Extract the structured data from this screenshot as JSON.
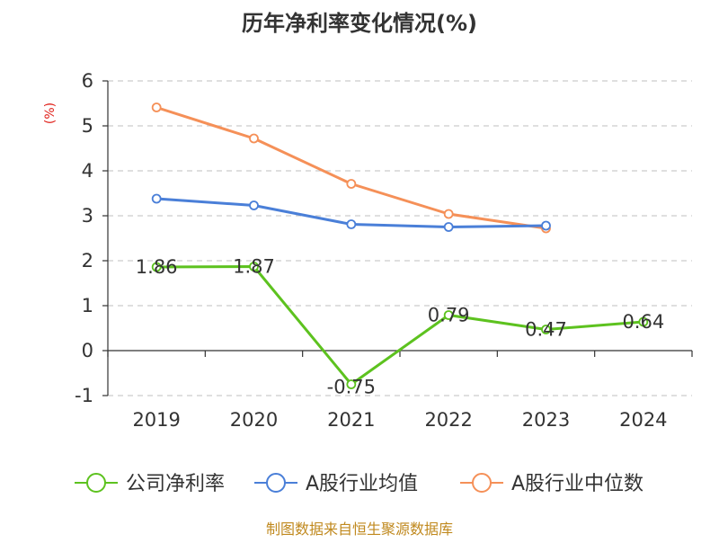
{
  "chart_data": {
    "type": "line",
    "title": "历年净利率变化情况(%)",
    "ylabel": "(%)",
    "xlabel": "",
    "categories": [
      "2019",
      "2020",
      "2021",
      "2022",
      "2023",
      "2024"
    ],
    "ylim": [
      -1,
      6
    ],
    "yticks": [
      -1,
      0,
      1,
      2,
      3,
      4,
      5,
      6
    ],
    "grid": true,
    "legend_position": "bottom",
    "series": [
      {
        "name": "公司净利率",
        "color": "#5dc21f",
        "values": [
          1.86,
          1.87,
          -0.75,
          0.79,
          0.47,
          0.64
        ],
        "labels": [
          "1.86",
          "1.87",
          "-0.75",
          "0.79",
          "0.47",
          "0.64"
        ]
      },
      {
        "name": "A股行业均值",
        "color": "#4a7fd8",
        "values": [
          3.38,
          3.23,
          2.81,
          2.75,
          2.78,
          null
        ]
      },
      {
        "name": "A股行业中位数",
        "color": "#f59058",
        "values": [
          5.41,
          4.72,
          3.71,
          3.04,
          2.72,
          null
        ]
      }
    ]
  },
  "source": "制图数据来自恒生聚源数据库"
}
